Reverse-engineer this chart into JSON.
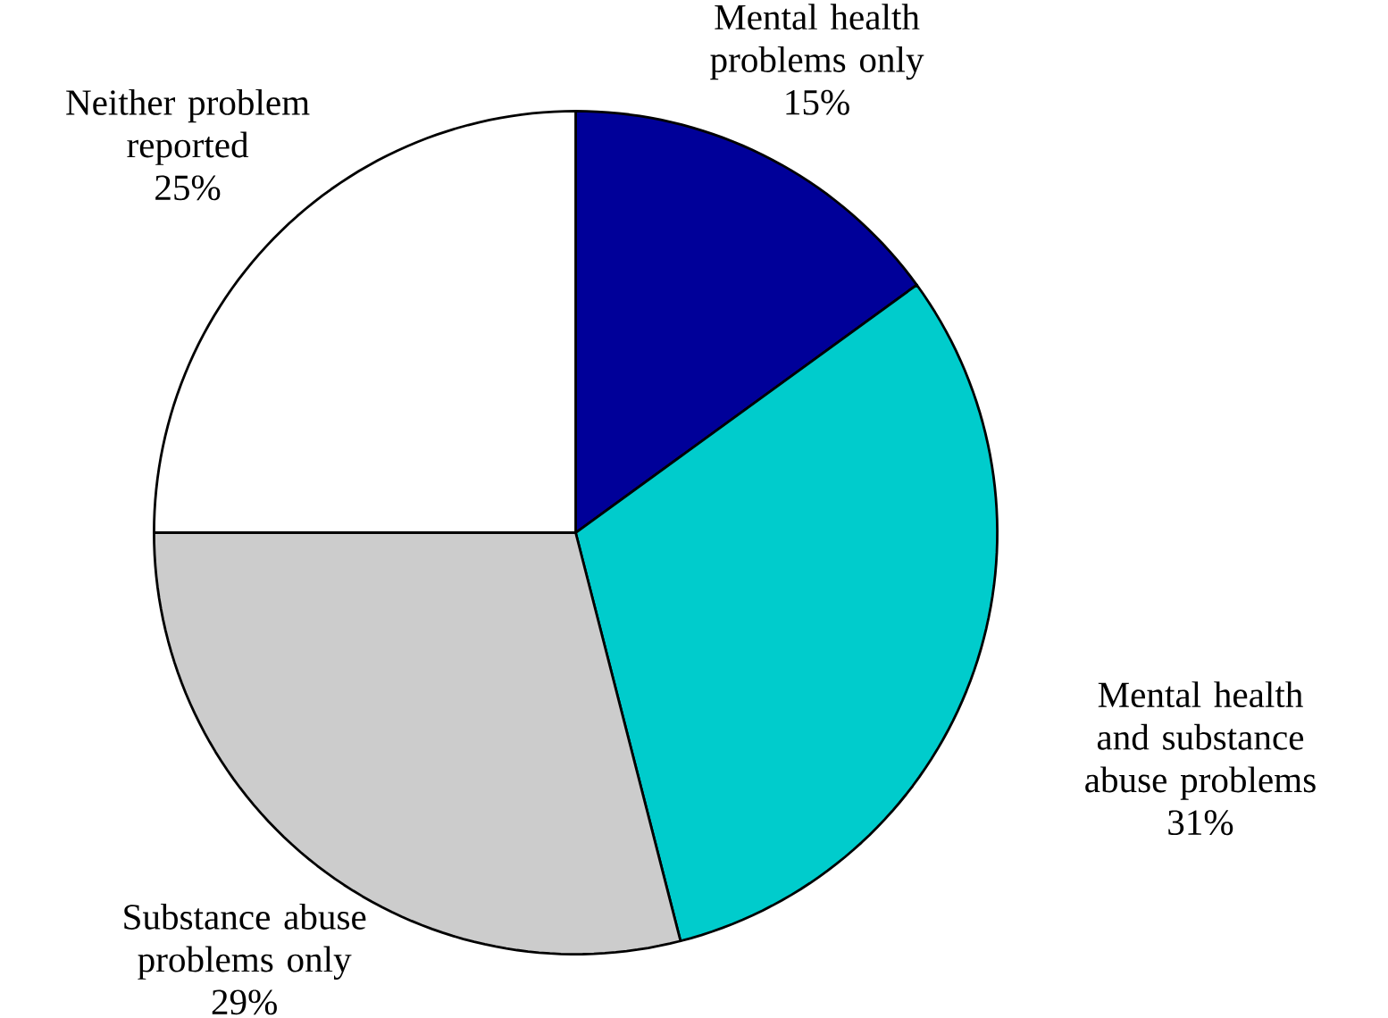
{
  "chart_data": {
    "type": "pie",
    "categories": [
      "Mental health problems only",
      "Mental health and substance abuse problems",
      "Substance abuse problems only",
      "Neither problem reported"
    ],
    "values": [
      15,
      31,
      29,
      25
    ],
    "value_labels": [
      "15%",
      "31%",
      "29%",
      "25%"
    ],
    "colors": [
      "#000099",
      "#00cccc",
      "#cccccc",
      "#ffffff"
    ]
  }
}
